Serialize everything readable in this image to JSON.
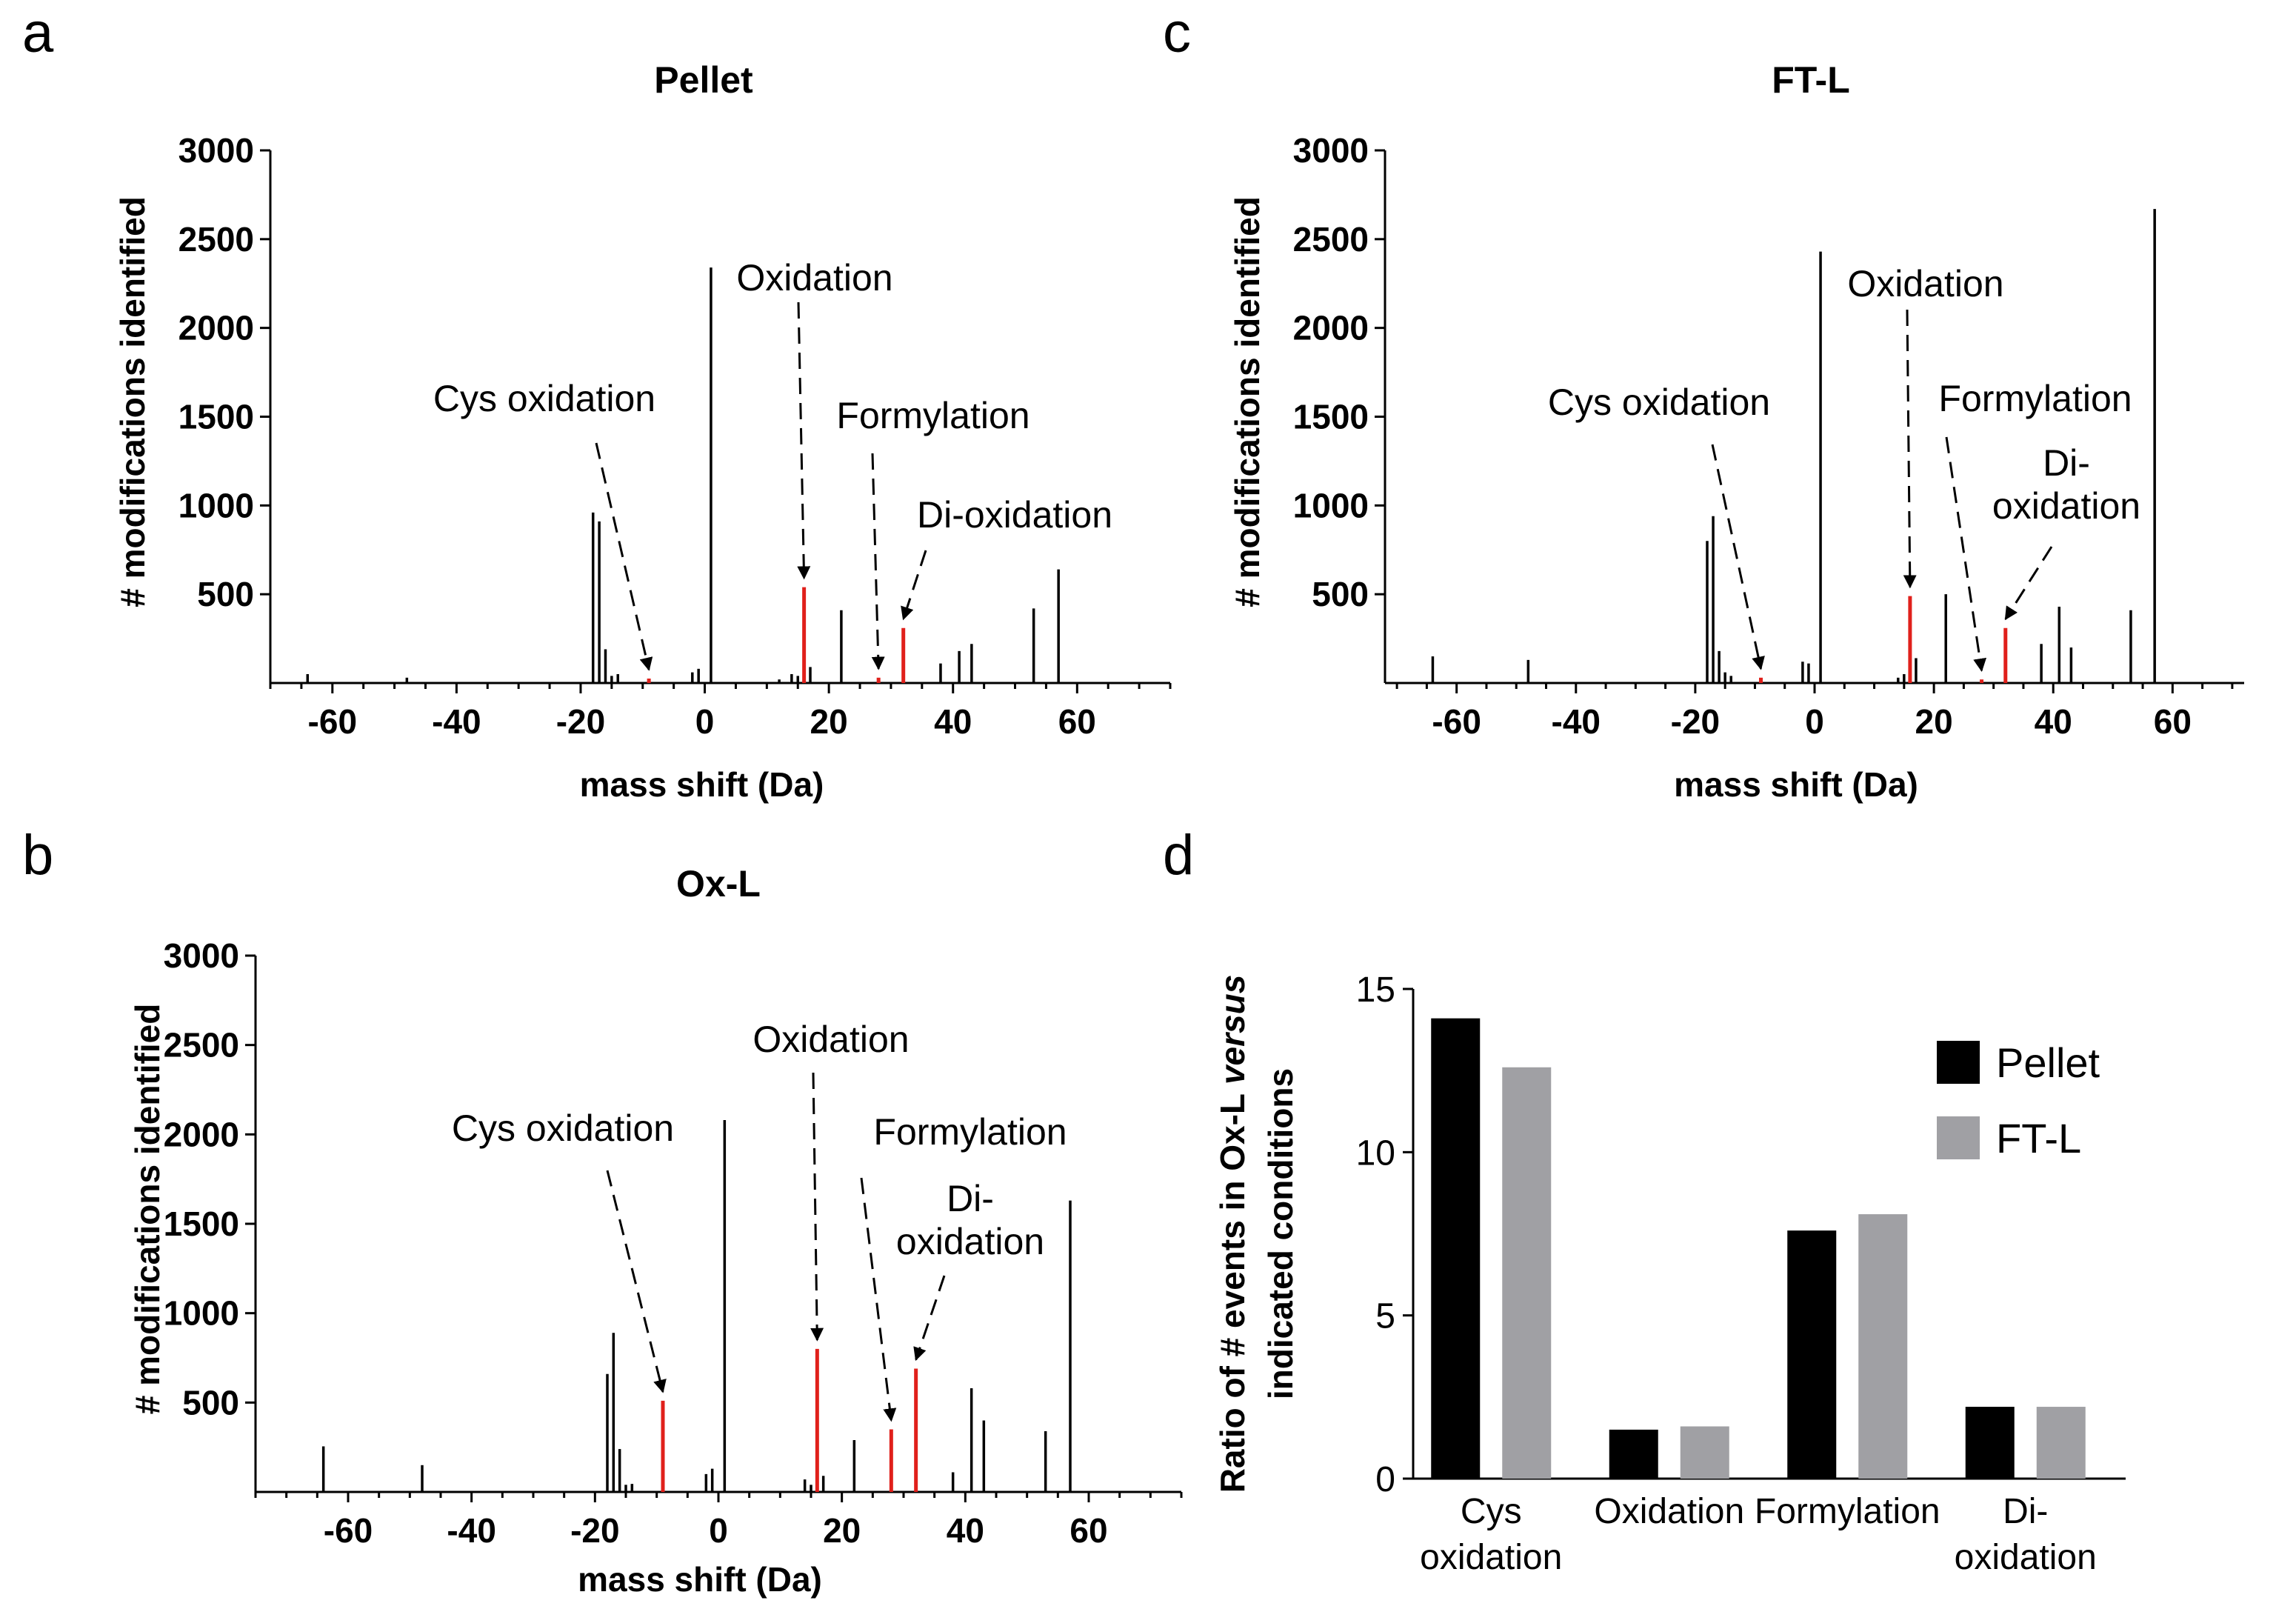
{
  "figure": {
    "panel_letters": [
      "a",
      "b",
      "c",
      "d"
    ]
  },
  "colors": {
    "black_bar": "#000000",
    "red_bar": "#e0201b",
    "grey_bar": "#a0a0a4",
    "axis": "#000000"
  },
  "chart_data": [
    {
      "id": "a",
      "type": "bar",
      "title": "Pellet",
      "xlabel": "mass shift (Da)",
      "ylabel": "# modifications identified",
      "xlim": [
        -70,
        75
      ],
      "ylim": [
        0,
        3000
      ],
      "xticks": [
        "-60",
        "-40",
        "-20",
        "0",
        "20",
        "40",
        "60"
      ],
      "yticks": [
        "500",
        "1000",
        "1500",
        "2000",
        "2500",
        "3000"
      ],
      "bars": [
        {
          "x": -64,
          "y": 50,
          "color": "black"
        },
        {
          "x": -48,
          "y": 30,
          "color": "black"
        },
        {
          "x": -18,
          "y": 960,
          "color": "black"
        },
        {
          "x": -17,
          "y": 910,
          "color": "black"
        },
        {
          "x": -16,
          "y": 190,
          "color": "black"
        },
        {
          "x": -15,
          "y": 40,
          "color": "black"
        },
        {
          "x": -14,
          "y": 50,
          "color": "black"
        },
        {
          "x": -9,
          "y": 25,
          "color": "red"
        },
        {
          "x": -2,
          "y": 60,
          "color": "black"
        },
        {
          "x": -1,
          "y": 80,
          "color": "black"
        },
        {
          "x": 1,
          "y": 2340,
          "color": "black"
        },
        {
          "x": 12,
          "y": 20,
          "color": "black"
        },
        {
          "x": 14,
          "y": 50,
          "color": "black"
        },
        {
          "x": 15,
          "y": 40,
          "color": "black"
        },
        {
          "x": 16,
          "y": 540,
          "color": "red"
        },
        {
          "x": 17,
          "y": 90,
          "color": "black"
        },
        {
          "x": 22,
          "y": 410,
          "color": "black"
        },
        {
          "x": 28,
          "y": 30,
          "color": "red"
        },
        {
          "x": 32,
          "y": 310,
          "color": "red"
        },
        {
          "x": 38,
          "y": 110,
          "color": "black"
        },
        {
          "x": 41,
          "y": 180,
          "color": "black"
        },
        {
          "x": 43,
          "y": 220,
          "color": "black"
        },
        {
          "x": 53,
          "y": 420,
          "color": "black"
        },
        {
          "x": 57,
          "y": 640,
          "color": "black"
        }
      ],
      "annotations": [
        {
          "text": "Oxidation",
          "lines": [
            "Oxidation"
          ],
          "target_x": 16
        },
        {
          "text": "Cys oxidation",
          "lines": [
            "Cys oxidation"
          ],
          "target_x": -9
        },
        {
          "text": "Formylation",
          "lines": [
            "Formylation"
          ],
          "target_x": 28
        },
        {
          "text": "Di-oxidation",
          "lines": [
            "Di-oxidation"
          ],
          "target_x": 32
        }
      ]
    },
    {
      "id": "b",
      "type": "bar",
      "title": "Ox-L",
      "xlabel": "mass shift (Da)",
      "ylabel": "# modifications identified",
      "xlim": [
        -75,
        75
      ],
      "ylim": [
        0,
        3000
      ],
      "xticks": [
        "-60",
        "-40",
        "-20",
        "0",
        "20",
        "40",
        "60"
      ],
      "yticks": [
        "500",
        "1000",
        "1500",
        "2000",
        "2500",
        "3000"
      ],
      "bars": [
        {
          "x": -64,
          "y": 255,
          "color": "black"
        },
        {
          "x": -48,
          "y": 150,
          "color": "black"
        },
        {
          "x": -18,
          "y": 660,
          "color": "black"
        },
        {
          "x": -17,
          "y": 890,
          "color": "black"
        },
        {
          "x": -16,
          "y": 240,
          "color": "black"
        },
        {
          "x": -15,
          "y": 40,
          "color": "black"
        },
        {
          "x": -14,
          "y": 45,
          "color": "black"
        },
        {
          "x": -9,
          "y": 510,
          "color": "red"
        },
        {
          "x": -2,
          "y": 100,
          "color": "black"
        },
        {
          "x": -1,
          "y": 130,
          "color": "black"
        },
        {
          "x": 1,
          "y": 2080,
          "color": "black"
        },
        {
          "x": 14,
          "y": 70,
          "color": "black"
        },
        {
          "x": 15,
          "y": 40,
          "color": "black"
        },
        {
          "x": 16,
          "y": 800,
          "color": "red"
        },
        {
          "x": 17,
          "y": 90,
          "color": "black"
        },
        {
          "x": 22,
          "y": 290,
          "color": "black"
        },
        {
          "x": 28,
          "y": 350,
          "color": "red"
        },
        {
          "x": 32,
          "y": 690,
          "color": "red"
        },
        {
          "x": 38,
          "y": 110,
          "color": "black"
        },
        {
          "x": 41,
          "y": 580,
          "color": "black"
        },
        {
          "x": 43,
          "y": 400,
          "color": "black"
        },
        {
          "x": 53,
          "y": 340,
          "color": "black"
        },
        {
          "x": 57,
          "y": 1630,
          "color": "black"
        }
      ],
      "annotations": [
        {
          "text": "Oxidation",
          "lines": [
            "Oxidation"
          ],
          "target_x": 16
        },
        {
          "text": "Cys oxidation",
          "lines": [
            "Cys oxidation"
          ],
          "target_x": -9
        },
        {
          "text": "Formylation",
          "lines": [
            "Formylation"
          ],
          "target_x": 28
        },
        {
          "text": "Di-oxidation",
          "lines": [
            "Di-",
            "oxidation"
          ],
          "target_x": 32
        }
      ]
    },
    {
      "id": "c",
      "type": "bar",
      "title": "FT-L",
      "xlabel": "mass shift (Da)",
      "ylabel": "# modifications identified",
      "xlim": [
        -72,
        72
      ],
      "ylim": [
        0,
        3000
      ],
      "xticks": [
        "-60",
        "-40",
        "-20",
        "0",
        "20",
        "40",
        "60"
      ],
      "yticks": [
        "500",
        "1000",
        "1500",
        "2000",
        "2500",
        "3000"
      ],
      "bars": [
        {
          "x": -64,
          "y": 150,
          "color": "black"
        },
        {
          "x": -48,
          "y": 130,
          "color": "black"
        },
        {
          "x": -18,
          "y": 800,
          "color": "black"
        },
        {
          "x": -17,
          "y": 940,
          "color": "black"
        },
        {
          "x": -16,
          "y": 180,
          "color": "black"
        },
        {
          "x": -15,
          "y": 60,
          "color": "black"
        },
        {
          "x": -14,
          "y": 40,
          "color": "black"
        },
        {
          "x": -9,
          "y": 30,
          "color": "red"
        },
        {
          "x": -2,
          "y": 120,
          "color": "black"
        },
        {
          "x": -1,
          "y": 110,
          "color": "black"
        },
        {
          "x": 1,
          "y": 2430,
          "color": "black"
        },
        {
          "x": 14,
          "y": 30,
          "color": "black"
        },
        {
          "x": 15,
          "y": 50,
          "color": "black"
        },
        {
          "x": 16,
          "y": 490,
          "color": "red"
        },
        {
          "x": 17,
          "y": 140,
          "color": "black"
        },
        {
          "x": 22,
          "y": 500,
          "color": "black"
        },
        {
          "x": 28,
          "y": 20,
          "color": "red"
        },
        {
          "x": 32,
          "y": 310,
          "color": "red"
        },
        {
          "x": 38,
          "y": 220,
          "color": "black"
        },
        {
          "x": 41,
          "y": 430,
          "color": "black"
        },
        {
          "x": 43,
          "y": 200,
          "color": "black"
        },
        {
          "x": 53,
          "y": 410,
          "color": "black"
        },
        {
          "x": 57,
          "y": 2670,
          "color": "black"
        }
      ],
      "annotations": [
        {
          "text": "Oxidation",
          "lines": [
            "Oxidation"
          ],
          "target_x": 16
        },
        {
          "text": "Cys oxidation",
          "lines": [
            "Cys oxidation"
          ],
          "target_x": -9
        },
        {
          "text": "Formylation",
          "lines": [
            "Formylation"
          ],
          "target_x": 28
        },
        {
          "text": "Di-oxidation",
          "lines": [
            "Di-",
            "oxidation"
          ],
          "target_x": 32
        }
      ]
    },
    {
      "id": "d",
      "type": "bar",
      "title": "",
      "xlabel": "",
      "ylabel_lines": [
        "Ratio of # events in Ox-L versus",
        "indicated conditions"
      ],
      "ylabel_italic_word": "versus",
      "ylim": [
        0,
        15
      ],
      "yticks": [
        "0",
        "5",
        "10",
        "15"
      ],
      "categories": [
        {
          "name": "Cys oxidation",
          "lines": [
            "Cys",
            "oxidation"
          ]
        },
        {
          "name": "Oxidation",
          "lines": [
            "Oxidation"
          ]
        },
        {
          "name": "Formylation",
          "lines": [
            "Formylation"
          ]
        },
        {
          "name": "Di-oxidation",
          "lines": [
            "Di-",
            "oxidation"
          ]
        }
      ],
      "series": [
        {
          "name": "Pellet",
          "color": "black",
          "values": [
            14.1,
            1.5,
            7.6,
            2.2
          ]
        },
        {
          "name": "FT-L",
          "color": "grey",
          "values": [
            12.6,
            1.6,
            8.1,
            2.2
          ]
        }
      ],
      "legend_position": "top-right"
    }
  ]
}
